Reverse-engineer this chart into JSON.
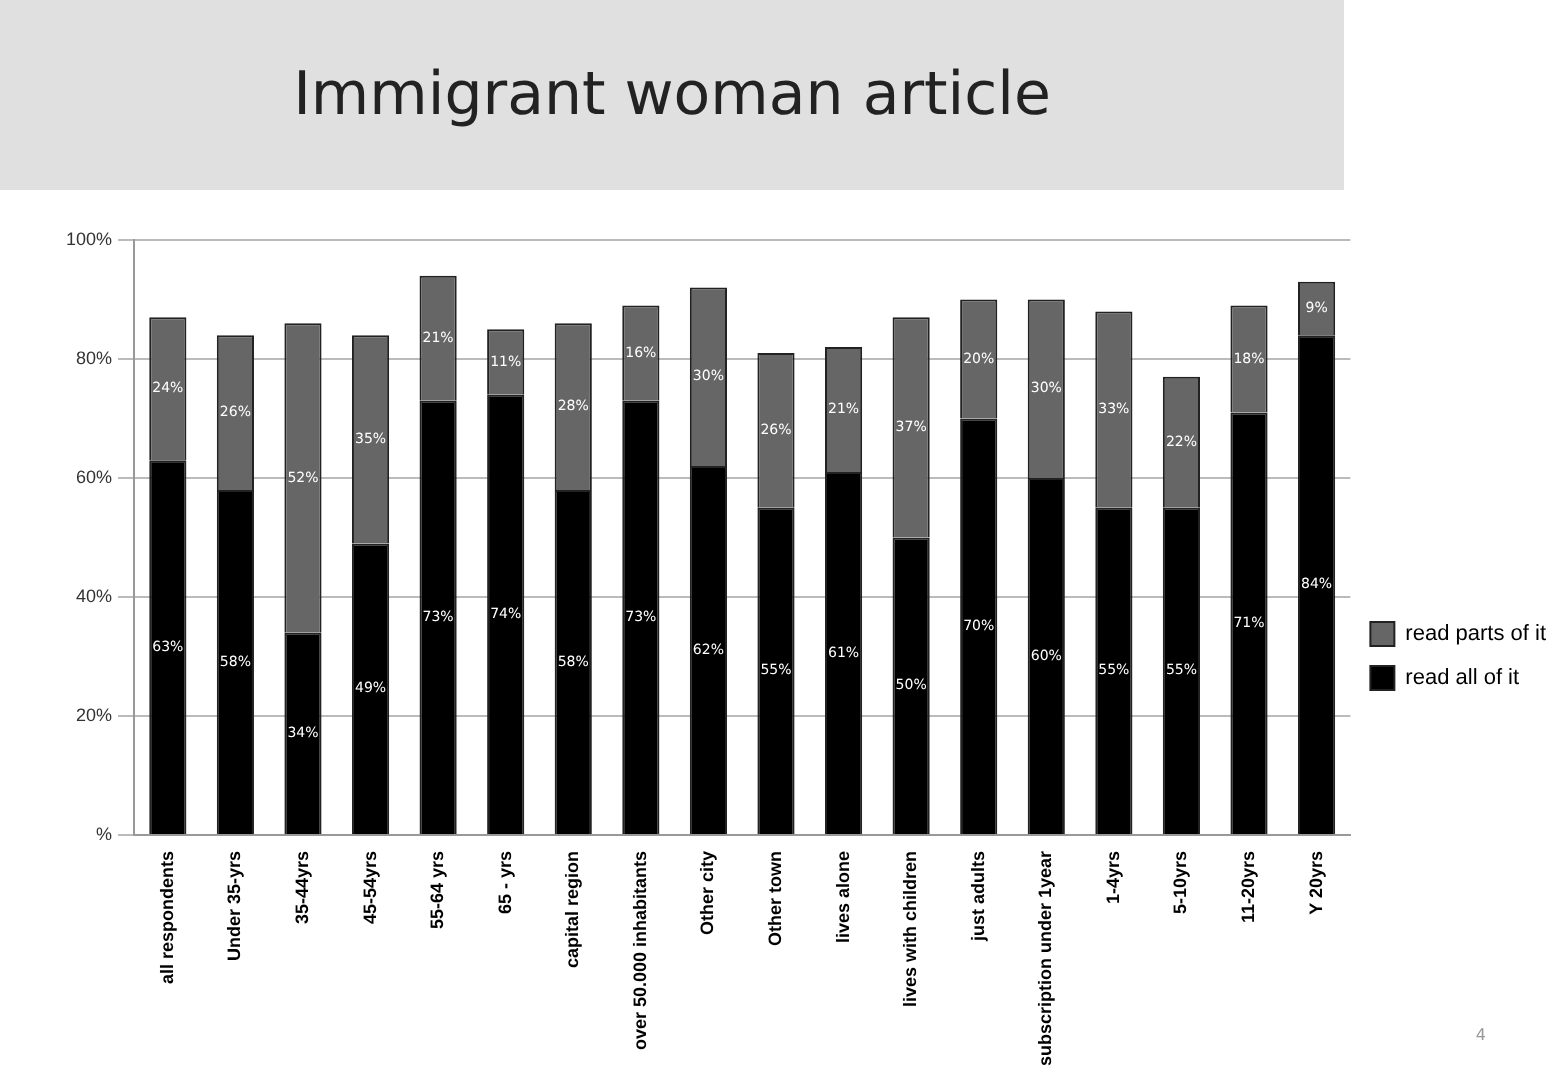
{
  "chart_data": {
    "type": "bar",
    "title": "Immigrant woman article",
    "stacked": true,
    "legend": "right",
    "grid": "y",
    "annotations": [
      "4"
    ],
    "categories": [
      "all respondents",
      "Under 35-yrs",
      "35-44yrs",
      "45-54yrs",
      "55-64 yrs",
      "65 - yrs",
      "capital region",
      "over 50.000 inhabitants",
      "Other city",
      "Other town",
      "lives alone",
      "lives with children",
      "just adults",
      "subscription under 1year",
      "1-4yrs",
      "5-10yrs",
      "11-20yrs",
      "Y 20yrs"
    ],
    "series": [
      {
        "name": "read all of it",
        "color": "#000000",
        "values": [
          63,
          58,
          34,
          49,
          73,
          74,
          58,
          73,
          62,
          55,
          61,
          50,
          70,
          60,
          55,
          55,
          71,
          84
        ],
        "value_labels": [
          "63%",
          "58%",
          "34%",
          "49%",
          "73%",
          "74%",
          "58%",
          "73%",
          "62%",
          "55%",
          "61%",
          "50%",
          "70%",
          "60%",
          "55%",
          "55%",
          "71%",
          "84%"
        ]
      },
      {
        "name": "read parts of it",
        "color": "#666666",
        "values": [
          24,
          26,
          52,
          35,
          21,
          11,
          28,
          16,
          30,
          26,
          21,
          37,
          20,
          30,
          33,
          22,
          18,
          9
        ],
        "value_labels": [
          "24%",
          "26%",
          "52%",
          "35%",
          "21%",
          "11%",
          "28%",
          "16%",
          "30%",
          "26%",
          "21%",
          "37%",
          "20%",
          "30%",
          "33%",
          "22%",
          "18%",
          "9%"
        ]
      }
    ],
    "ylim": [
      0,
      100
    ],
    "yticks": [
      {
        "value": 0,
        "label": "%"
      },
      {
        "value": 20,
        "label": "20%"
      },
      {
        "value": 40,
        "label": "40%"
      },
      {
        "value": 60,
        "label": "60%"
      },
      {
        "value": 80,
        "label": "80%"
      },
      {
        "value": 100,
        "label": "100%"
      }
    ]
  }
}
